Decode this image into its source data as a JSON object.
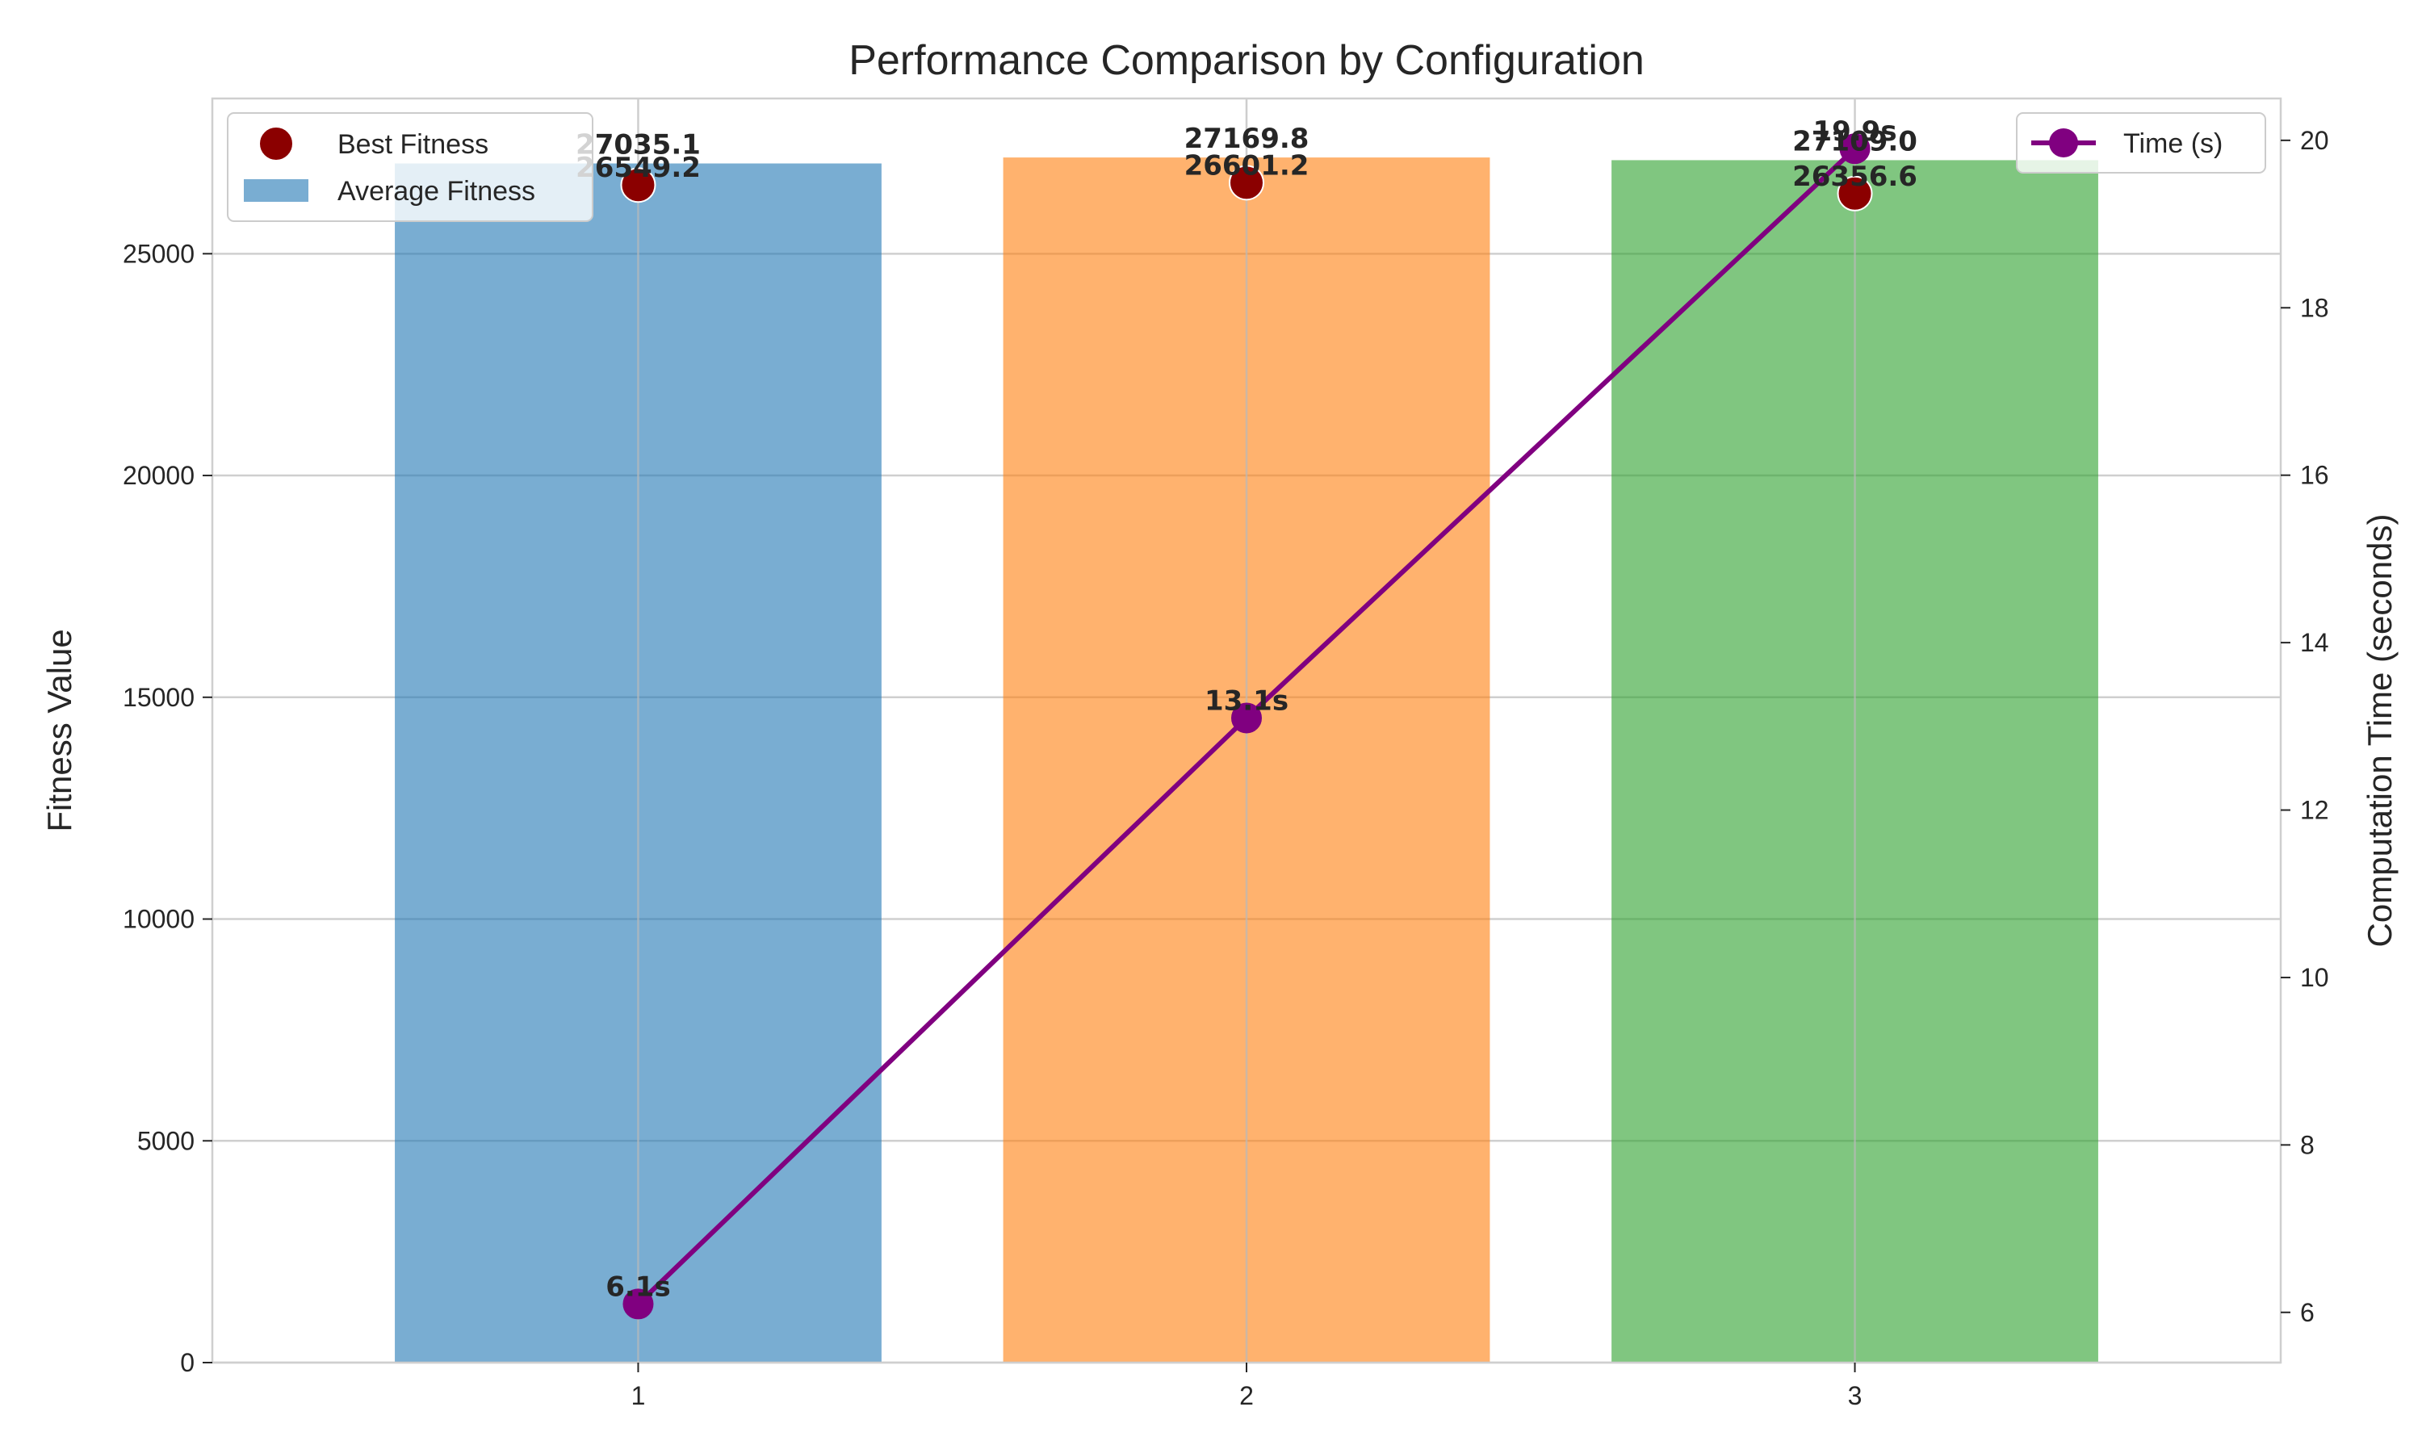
{
  "chart_data": {
    "type": "bar",
    "title": "Performance Comparison by Configuration",
    "xlabel": "",
    "ylabel": "Fitness Value",
    "y2label": "Computation Time (seconds)",
    "categories": [
      "1",
      "2",
      "3"
    ],
    "ylim": [
      0,
      28500
    ],
    "y2lim": [
      5.4,
      20.5
    ],
    "yticks": [
      0,
      5000,
      10000,
      15000,
      20000,
      25000
    ],
    "y2ticks": [
      6,
      8,
      10,
      12,
      14,
      16,
      18,
      20
    ],
    "grid": true,
    "series": [
      {
        "name": "Average Fitness",
        "kind": "bar",
        "axis": "left",
        "values": [
          27035.1,
          27169.8,
          27109.0
        ],
        "labels": [
          "27035.1",
          "27169.8",
          "27109.0"
        ],
        "colors": [
          "#1f77b4",
          "#ff7f0e",
          "#2ca02c"
        ]
      },
      {
        "name": "Best Fitness",
        "kind": "scatter",
        "axis": "left",
        "values": [
          26549.2,
          26601.2,
          26356.6
        ],
        "labels": [
          "26549.2",
          "26601.2",
          "26356.6"
        ],
        "color": "#8b0000"
      },
      {
        "name": "Time (s)",
        "kind": "line",
        "axis": "right",
        "values": [
          6.1,
          13.1,
          19.9
        ],
        "labels": [
          "6.1s",
          "13.1s",
          "19.9s"
        ],
        "color": "#800080"
      }
    ],
    "legend_left_position": "top-left",
    "legend_right_position": "top-right"
  }
}
